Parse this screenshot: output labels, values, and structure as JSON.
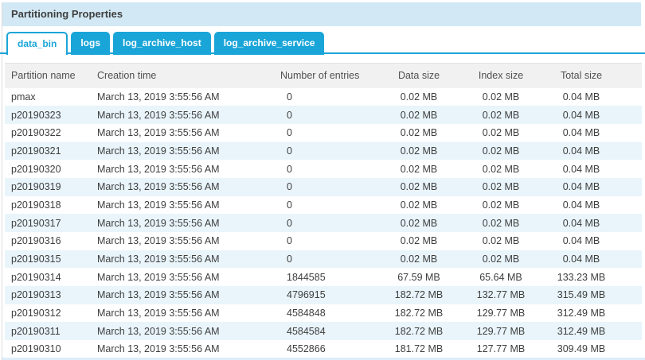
{
  "panel": {
    "title": "Partitioning Properties"
  },
  "tabs": [
    {
      "label": "data_bin",
      "active": true
    },
    {
      "label": "logs",
      "active": false
    },
    {
      "label": "log_archive_host",
      "active": false
    },
    {
      "label": "log_archive_service",
      "active": false
    }
  ],
  "table": {
    "columns": [
      "Partition name",
      "Creation time",
      "Number of entries",
      "Data size",
      "Index size",
      "Total size"
    ],
    "rows": [
      [
        "pmax",
        "March 13, 2019 3:55:56 AM",
        "0",
        "0.02 MB",
        "0.02 MB",
        "0.04 MB"
      ],
      [
        "p20190323",
        "March 13, 2019 3:55:56 AM",
        "0",
        "0.02 MB",
        "0.02 MB",
        "0.04 MB"
      ],
      [
        "p20190322",
        "March 13, 2019 3:55:56 AM",
        "0",
        "0.02 MB",
        "0.02 MB",
        "0.04 MB"
      ],
      [
        "p20190321",
        "March 13, 2019 3:55:56 AM",
        "0",
        "0.02 MB",
        "0.02 MB",
        "0.04 MB"
      ],
      [
        "p20190320",
        "March 13, 2019 3:55:56 AM",
        "0",
        "0.02 MB",
        "0.02 MB",
        "0.04 MB"
      ],
      [
        "p20190319",
        "March 13, 2019 3:55:56 AM",
        "0",
        "0.02 MB",
        "0.02 MB",
        "0.04 MB"
      ],
      [
        "p20190318",
        "March 13, 2019 3:55:56 AM",
        "0",
        "0.02 MB",
        "0.02 MB",
        "0.04 MB"
      ],
      [
        "p20190317",
        "March 13, 2019 3:55:56 AM",
        "0",
        "0.02 MB",
        "0.02 MB",
        "0.04 MB"
      ],
      [
        "p20190316",
        "March 13, 2019 3:55:56 AM",
        "0",
        "0.02 MB",
        "0.02 MB",
        "0.04 MB"
      ],
      [
        "p20190315",
        "March 13, 2019 3:55:56 AM",
        "0",
        "0.02 MB",
        "0.02 MB",
        "0.04 MB"
      ],
      [
        "p20190314",
        "March 13, 2019 3:55:56 AM",
        "1844585",
        "67.59 MB",
        "65.64 MB",
        "133.23 MB"
      ],
      [
        "p20190313",
        "March 13, 2019 3:55:56 AM",
        "4796915",
        "182.72 MB",
        "132.77 MB",
        "315.49 MB"
      ],
      [
        "p20190312",
        "March 13, 2019 3:55:56 AM",
        "4584848",
        "182.72 MB",
        "129.77 MB",
        "312.49 MB"
      ],
      [
        "p20190311",
        "March 13, 2019 3:55:56 AM",
        "4584584",
        "182.72 MB",
        "129.77 MB",
        "312.49 MB"
      ],
      [
        "p20190310",
        "March 13, 2019 3:55:56 AM",
        "4552866",
        "181.72 MB",
        "127.77 MB",
        "309.49 MB"
      ]
    ]
  },
  "colors": {
    "accent": "#1aa5d8",
    "titlebar_bg": "#d2e9f5",
    "header_bg": "#f1f1f1",
    "row_alt_bg": "#e9f5fb"
  }
}
